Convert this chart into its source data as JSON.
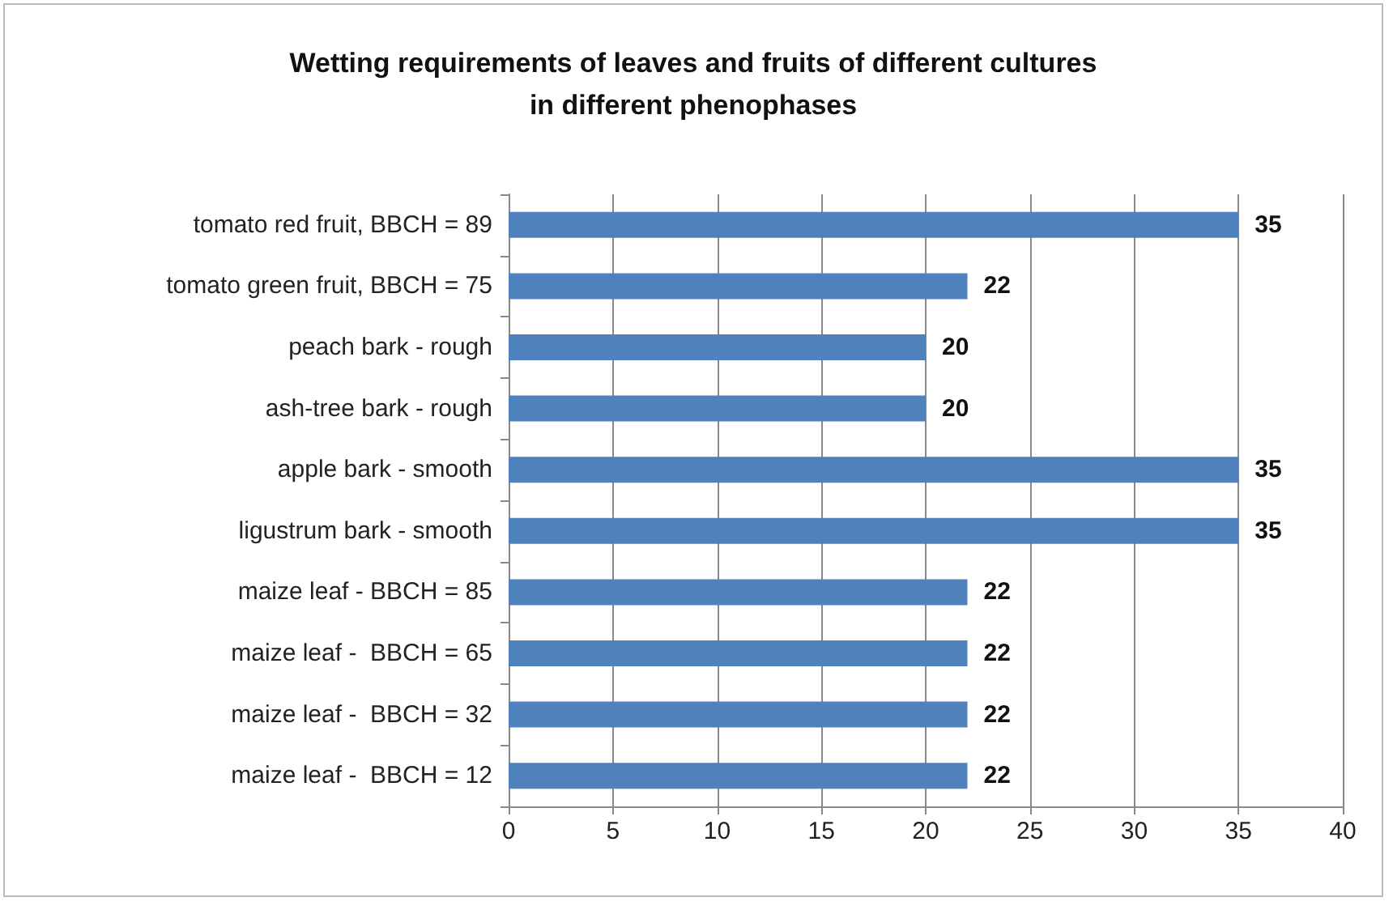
{
  "chart_data": {
    "type": "bar",
    "orientation": "horizontal",
    "title": "Wetting requirements of leaves and fruits of different cultures\nin different phenophases",
    "categories": [
      "tomato red fruit, BBCH = 89",
      "tomato green fruit, BBCH = 75",
      "peach bark - rough",
      "ash-tree bark - rough",
      "apple bark - smooth",
      "ligustrum bark - smooth",
      "maize leaf - BBCH = 85",
      "maize leaf -  BBCH = 65",
      "maize leaf -  BBCH = 32",
      "maize leaf -  BBCH = 12"
    ],
    "values": [
      35,
      22,
      20,
      20,
      35,
      35,
      22,
      22,
      22,
      22
    ],
    "color": "#4f81bd",
    "xlim": [
      0,
      40
    ],
    "xticks": [
      0,
      5,
      10,
      15,
      20,
      25,
      30,
      35,
      40
    ],
    "grid": "x",
    "data_labels": true
  }
}
